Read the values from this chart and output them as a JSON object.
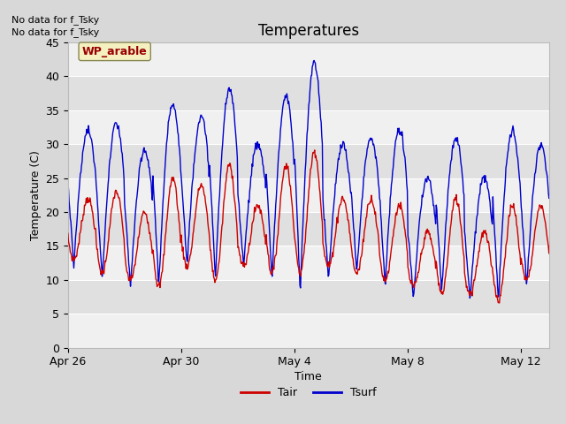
{
  "title": "Temperatures",
  "xlabel": "Time",
  "ylabel": "Temperature (C)",
  "ylim": [
    0,
    45
  ],
  "yticks": [
    0,
    5,
    10,
    15,
    20,
    25,
    30,
    35,
    40,
    45
  ],
  "fig_bg_color": "#d8d8d8",
  "plot_bg_color": "#e8e8e8",
  "band_colors": [
    "#e8e8e8",
    "#d8d8d8"
  ],
  "annotations": [
    "No data for f_Tsky",
    "No data for f_Tsky"
  ],
  "legend_label1": "Tair",
  "legend_label2": "Tsurf",
  "color_tair": "#cc0000",
  "color_tsurf": "#0000cc",
  "wp_label": "WP_arable",
  "wp_label_color": "#990000",
  "wp_bg_color": "#f5f0c0",
  "wp_border_color": "#888855",
  "tick_positions": [
    0,
    4,
    8,
    12,
    16
  ],
  "tick_labels": [
    "Apr 26",
    "Apr 30",
    "May 4",
    "May 8",
    "May 12"
  ],
  "n_days": 18,
  "line_width": 1.0
}
